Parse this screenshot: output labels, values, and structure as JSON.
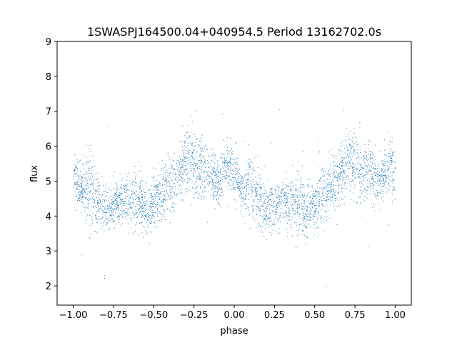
{
  "chart_data": {
    "type": "scatter",
    "title": "1SWASPJ164500.04+040954.5 Period 13162702.0s",
    "xlabel": "phase",
    "ylabel": "flux",
    "xlim": [
      -1.1,
      1.1
    ],
    "ylim": [
      1.45,
      9.0
    ],
    "x_ticks": [
      -1.0,
      -0.75,
      -0.5,
      -0.25,
      0.0,
      0.25,
      0.5,
      0.75,
      1.0
    ],
    "x_tick_labels": [
      "−1.00",
      "−0.75",
      "−0.50",
      "−0.25",
      "0.00",
      "0.25",
      "0.50",
      "0.75",
      "1.00"
    ],
    "y_ticks": [
      2,
      3,
      4,
      5,
      6,
      7,
      8,
      9
    ],
    "y_tick_labels": [
      "2",
      "3",
      "4",
      "5",
      "6",
      "7",
      "8",
      "9"
    ],
    "grid": false,
    "marker_color": "#1f77b4",
    "phase_range": [
      -1.0,
      1.0
    ],
    "mean_flux_by_phase": {
      "x": [
        -1.0,
        -0.95,
        -0.9,
        -0.85,
        -0.8,
        -0.75,
        -0.7,
        -0.65,
        -0.6,
        -0.55,
        -0.5,
        -0.45,
        -0.4,
        -0.35,
        -0.3,
        -0.25,
        -0.2,
        -0.15,
        -0.1,
        -0.05,
        0.0,
        0.05,
        0.1,
        0.15,
        0.2,
        0.25,
        0.3,
        0.35,
        0.4,
        0.45,
        0.5,
        0.55,
        0.6,
        0.65,
        0.7,
        0.75,
        0.8,
        0.85,
        0.9,
        0.95,
        1.0
      ],
      "y": [
        5.3,
        4.7,
        4.9,
        4.4,
        4.2,
        4.3,
        4.5,
        4.4,
        4.5,
        4.2,
        4.4,
        4.6,
        4.9,
        5.1,
        5.6,
        5.5,
        5.3,
        5.2,
        5.0,
        5.4,
        5.3,
        4.7,
        4.9,
        4.4,
        4.2,
        4.3,
        4.5,
        4.4,
        4.5,
        4.2,
        4.4,
        4.6,
        4.9,
        5.1,
        5.6,
        5.5,
        5.3,
        5.2,
        5.0,
        5.4,
        5.3
      ]
    },
    "scatter_half_width": [
      0.55,
      0.35,
      0.8,
      0.55,
      0.4,
      0.4,
      0.45,
      0.45,
      0.6,
      0.5,
      0.5,
      0.55,
      0.6,
      0.55,
      0.6,
      0.65,
      0.55,
      0.5,
      0.45,
      0.5,
      0.55,
      0.35,
      0.8,
      0.55,
      0.4,
      0.4,
      0.45,
      0.45,
      0.6,
      0.5,
      0.5,
      0.55,
      0.6,
      0.55,
      0.6,
      0.65,
      0.55,
      0.5,
      0.45,
      0.5,
      0.55
    ]
  }
}
